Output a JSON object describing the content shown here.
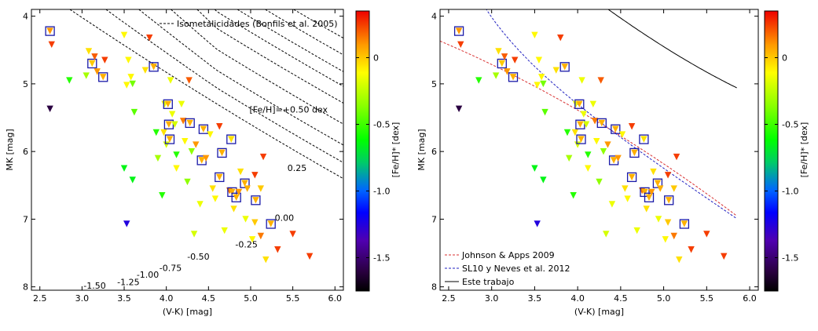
{
  "chart_data": [
    {
      "type": "scatter",
      "xlabel": "(V-K) [mag]",
      "ylabel": "MK [mag]",
      "xlim": [
        2.4,
        6.1
      ],
      "ylim": [
        8.05,
        3.9
      ],
      "xticks": [
        "2.5",
        "3.0",
        "3.5",
        "4.0",
        "4.5",
        "5.0",
        "5.5",
        "6.0"
      ],
      "yticks": [
        "4",
        "5",
        "6",
        "7",
        "8"
      ],
      "colorbar": {
        "label": "[Fe/H]* [dex]",
        "ticks": [
          "0",
          "-0.5",
          "-1.0",
          "-1.5"
        ],
        "range": [
          -1.75,
          0.35
        ]
      },
      "legend": {
        "position": "top-right",
        "entries": [
          "Isometalicidades (Bonfils et al. 2005)"
        ]
      },
      "curve_labels": [
        {
          "text": "[Fe/H]=+0.50 dex",
          "x": 5.45,
          "y": 5.38
        },
        {
          "text": "0.25",
          "x": 5.55,
          "y": 6.24
        },
        {
          "text": "0.00",
          "x": 5.4,
          "y": 6.98
        },
        {
          "text": "-0.25",
          "x": 4.95,
          "y": 7.37
        },
        {
          "text": "-0.50",
          "x": 4.38,
          "y": 7.55
        },
        {
          "text": "-0.75",
          "x": 4.05,
          "y": 7.72
        },
        {
          "text": "-1.00",
          "x": 3.78,
          "y": 7.82
        },
        {
          "text": "-1.25",
          "x": 3.55,
          "y": 7.93
        },
        {
          "text": "-1.50",
          "x": 3.15,
          "y": 7.98
        }
      ]
    },
    {
      "type": "scatter",
      "xlabel": "(V-K) [mag]",
      "ylabel": "MK [mag]",
      "xlim": [
        2.4,
        6.1
      ],
      "ylim": [
        8.05,
        3.9
      ],
      "xticks": [
        "2.5",
        "3.0",
        "3.5",
        "4.0",
        "4.5",
        "5.0",
        "5.5",
        "6.0"
      ],
      "yticks": [
        "4",
        "5",
        "6",
        "7",
        "8"
      ],
      "colorbar": {
        "label": "[Fe/H]* [dex]",
        "ticks": [
          "0",
          "-0.5",
          "-1.0",
          "-1.5"
        ],
        "range": [
          -1.75,
          0.35
        ]
      },
      "legend": {
        "position": "bottom-left",
        "entries": [
          {
            "label": "Johnson & Apps 2009",
            "color": "#d83030",
            "style": "dashed"
          },
          {
            "label": "SL10 y Neves et al. 2012",
            "color": "#2020c0",
            "style": "dashed"
          },
          {
            "label": "Este trabajo",
            "color": "#000000",
            "style": "solid"
          }
        ]
      }
    }
  ],
  "stars": [
    {
      "x": 2.62,
      "y": 4.22,
      "feh": 0.1,
      "boxed": true
    },
    {
      "x": 2.64,
      "y": 4.42,
      "feh": 0.25
    },
    {
      "x": 2.62,
      "y": 5.37,
      "feh": -1.6
    },
    {
      "x": 2.85,
      "y": 4.95,
      "feh": -0.55
    },
    {
      "x": 3.05,
      "y": 4.88,
      "feh": -0.3
    },
    {
      "x": 3.08,
      "y": 4.52,
      "feh": -0.05
    },
    {
      "x": 3.12,
      "y": 4.7,
      "feh": 0.0,
      "boxed": true
    },
    {
      "x": 3.15,
      "y": 4.6,
      "feh": 0.2
    },
    {
      "x": 3.18,
      "y": 4.82,
      "feh": 0.1
    },
    {
      "x": 3.25,
      "y": 4.9,
      "feh": 0.05,
      "boxed": true
    },
    {
      "x": 3.27,
      "y": 4.65,
      "feh": 0.25
    },
    {
      "x": 3.5,
      "y": 4.28,
      "feh": -0.1
    },
    {
      "x": 3.53,
      "y": 5.02,
      "feh": -0.1
    },
    {
      "x": 3.55,
      "y": 4.65,
      "feh": -0.1
    },
    {
      "x": 3.58,
      "y": 4.9,
      "feh": -0.1
    },
    {
      "x": 3.6,
      "y": 5.0,
      "feh": -0.4
    },
    {
      "x": 3.62,
      "y": 5.42,
      "feh": -0.45
    },
    {
      "x": 3.5,
      "y": 6.25,
      "feh": -0.65
    },
    {
      "x": 3.6,
      "y": 6.42,
      "feh": -0.65
    },
    {
      "x": 3.53,
      "y": 7.07,
      "feh": -1.25
    },
    {
      "x": 3.8,
      "y": 4.32,
      "feh": 0.25
    },
    {
      "x": 3.75,
      "y": 4.8,
      "feh": -0.05
    },
    {
      "x": 3.85,
      "y": 4.75,
      "feh": 0.05,
      "boxed": true
    },
    {
      "x": 3.88,
      "y": 5.72,
      "feh": -0.55
    },
    {
      "x": 3.9,
      "y": 6.1,
      "feh": -0.3
    },
    {
      "x": 3.95,
      "y": 6.65,
      "feh": -0.55
    },
    {
      "x": 3.97,
      "y": 5.72,
      "feh": -0.05
    },
    {
      "x": 3.98,
      "y": 5.3,
      "feh": -0.15
    },
    {
      "x": 4.0,
      "y": 5.9,
      "feh": -0.2
    },
    {
      "x": 4.02,
      "y": 5.3,
      "feh": 0.05,
      "boxed": true
    },
    {
      "x": 4.03,
      "y": 5.6,
      "feh": 0.05,
      "boxed": true
    },
    {
      "x": 4.04,
      "y": 5.82,
      "feh": 0.05,
      "boxed": true
    },
    {
      "x": 4.05,
      "y": 4.95,
      "feh": -0.15
    },
    {
      "x": 4.07,
      "y": 5.45,
      "feh": -0.15
    },
    {
      "x": 4.1,
      "y": 5.6,
      "feh": -0.2
    },
    {
      "x": 4.12,
      "y": 6.05,
      "feh": -0.55
    },
    {
      "x": 4.12,
      "y": 6.25,
      "feh": -0.1
    },
    {
      "x": 4.18,
      "y": 5.3,
      "feh": -0.15
    },
    {
      "x": 4.2,
      "y": 5.55,
      "feh": 0.15
    },
    {
      "x": 4.22,
      "y": 5.85,
      "feh": -0.1
    },
    {
      "x": 4.25,
      "y": 6.45,
      "feh": -0.35
    },
    {
      "x": 4.27,
      "y": 4.95,
      "feh": 0.2
    },
    {
      "x": 4.28,
      "y": 5.58,
      "feh": 0.05,
      "boxed": true
    },
    {
      "x": 4.3,
      "y": 6.0,
      "feh": -0.35
    },
    {
      "x": 4.33,
      "y": 7.22,
      "feh": -0.2
    },
    {
      "x": 4.35,
      "y": 5.9,
      "feh": 0.1
    },
    {
      "x": 4.4,
      "y": 6.78,
      "feh": -0.15
    },
    {
      "x": 4.42,
      "y": 6.13,
      "feh": 0.05,
      "boxed": true
    },
    {
      "x": 4.44,
      "y": 5.67,
      "feh": 0.05,
      "boxed": true
    },
    {
      "x": 4.47,
      "y": 6.1,
      "feh": 0.1
    },
    {
      "x": 4.52,
      "y": 5.75,
      "feh": -0.1
    },
    {
      "x": 4.55,
      "y": 6.55,
      "feh": -0.05
    },
    {
      "x": 4.58,
      "y": 6.7,
      "feh": -0.1
    },
    {
      "x": 4.63,
      "y": 5.63,
      "feh": 0.25
    },
    {
      "x": 4.63,
      "y": 6.38,
      "feh": 0.05,
      "boxed": true
    },
    {
      "x": 4.66,
      "y": 6.02,
      "feh": 0.05,
      "boxed": true
    },
    {
      "x": 4.69,
      "y": 7.17,
      "feh": -0.15
    },
    {
      "x": 4.75,
      "y": 6.58,
      "feh": 0.15
    },
    {
      "x": 4.77,
      "y": 5.82,
      "feh": -0.05,
      "boxed": true
    },
    {
      "x": 4.78,
      "y": 6.6,
      "feh": 0.05,
      "boxed": true
    },
    {
      "x": 4.8,
      "y": 6.85,
      "feh": -0.05
    },
    {
      "x": 4.83,
      "y": 6.68,
      "feh": 0.05,
      "boxed": true
    },
    {
      "x": 4.86,
      "y": 6.6,
      "feh": 0.1
    },
    {
      "x": 4.88,
      "y": 6.3,
      "feh": -0.05
    },
    {
      "x": 4.93,
      "y": 6.47,
      "feh": 0.05,
      "boxed": true
    },
    {
      "x": 4.94,
      "y": 7.0,
      "feh": -0.15
    },
    {
      "x": 4.96,
      "y": 6.55,
      "feh": 0.05
    },
    {
      "x": 5.02,
      "y": 7.3,
      "feh": -0.1
    },
    {
      "x": 5.05,
      "y": 6.35,
      "feh": 0.25
    },
    {
      "x": 5.06,
      "y": 6.72,
      "feh": 0.05,
      "boxed": true
    },
    {
      "x": 5.05,
      "y": 7.05,
      "feh": 0.0
    },
    {
      "x": 5.12,
      "y": 6.55,
      "feh": 0.0
    },
    {
      "x": 5.12,
      "y": 7.25,
      "feh": 0.15
    },
    {
      "x": 5.15,
      "y": 6.08,
      "feh": 0.25
    },
    {
      "x": 5.18,
      "y": 7.6,
      "feh": -0.05
    },
    {
      "x": 5.24,
      "y": 7.07,
      "feh": 0.05,
      "boxed": true
    },
    {
      "x": 5.32,
      "y": 7.45,
      "feh": 0.25
    },
    {
      "x": 5.5,
      "y": 7.22,
      "feh": 0.25
    },
    {
      "x": 5.7,
      "y": 7.55,
      "feh": 0.25
    }
  ],
  "icons": {
    "marker": "down-triangle-marker",
    "box": "square-outline-marker"
  }
}
